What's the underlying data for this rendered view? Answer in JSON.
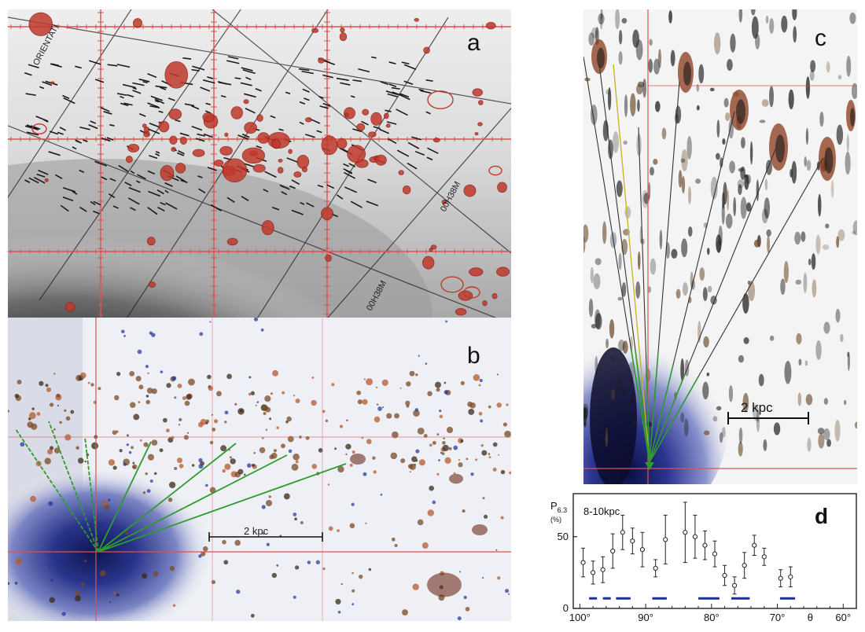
{
  "panels": {
    "a": {
      "letter": "a",
      "frame_label": "ORIENTATI",
      "strip_label": "00H38M"
    },
    "b": {
      "letter": "b",
      "scale_label": "2 kpc"
    },
    "c": {
      "letter": "c",
      "scale_label": "2 kpc"
    },
    "d": {
      "letter": "d"
    }
  },
  "colors": {
    "grid_red": "#e05050",
    "contour_red": "#c0392b",
    "ray_green": "#2e9b2e",
    "nucleus_blue": "#3340a0",
    "dash_blue": "#1f2f9a"
  },
  "chart_data": {
    "type": "scatter",
    "title": "",
    "ylabel": "P6.3 (%)",
    "ylabel_main": "P",
    "ylabel_sub": "6.3",
    "ylabel_unit": "(%)",
    "annotation": "8-10kpc",
    "xlabel": "θ",
    "x_axis_reversed": true,
    "xlim": [
      101,
      58
    ],
    "ylim": [
      0,
      80
    ],
    "x_ticks": [
      100,
      90,
      80,
      70,
      60
    ],
    "x_tick_labels": [
      "100°",
      "90°",
      "80°",
      "70°",
      "60°"
    ],
    "y_ticks": [
      0,
      50
    ],
    "y_tick_labels": [
      "0",
      "50"
    ],
    "points": [
      {
        "x": 99.5,
        "y": 32,
        "err": 10
      },
      {
        "x": 98.0,
        "y": 25,
        "err": 8
      },
      {
        "x": 96.5,
        "y": 27,
        "err": 9
      },
      {
        "x": 95.0,
        "y": 40,
        "err": 12
      },
      {
        "x": 93.5,
        "y": 53,
        "err": 12
      },
      {
        "x": 92.0,
        "y": 47,
        "err": 9
      },
      {
        "x": 90.5,
        "y": 41,
        "err": 12
      },
      {
        "x": 88.5,
        "y": 28,
        "err": 6
      },
      {
        "x": 87.0,
        "y": 48,
        "err": 17
      },
      {
        "x": 84.0,
        "y": 53,
        "err": 21
      },
      {
        "x": 82.5,
        "y": 50,
        "err": 15
      },
      {
        "x": 81.0,
        "y": 44,
        "err": 10
      },
      {
        "x": 79.5,
        "y": 38,
        "err": 9
      },
      {
        "x": 78.0,
        "y": 23,
        "err": 7
      },
      {
        "x": 76.5,
        "y": 16,
        "err": 6
      },
      {
        "x": 75.0,
        "y": 30,
        "err": 9
      },
      {
        "x": 73.5,
        "y": 44,
        "err": 7
      },
      {
        "x": 72.0,
        "y": 36,
        "err": 6
      },
      {
        "x": 69.5,
        "y": 21,
        "err": 6
      },
      {
        "x": 68.0,
        "y": 22,
        "err": 7
      }
    ],
    "baseline_segments": [
      [
        98.6,
        97.4
      ],
      [
        96.5,
        95.3
      ],
      [
        94.5,
        92.3
      ],
      [
        89.0,
        86.8
      ],
      [
        82.0,
        78.8
      ],
      [
        77.0,
        74.2
      ],
      [
        69.6,
        67.3
      ]
    ],
    "baseline_y": 7
  }
}
